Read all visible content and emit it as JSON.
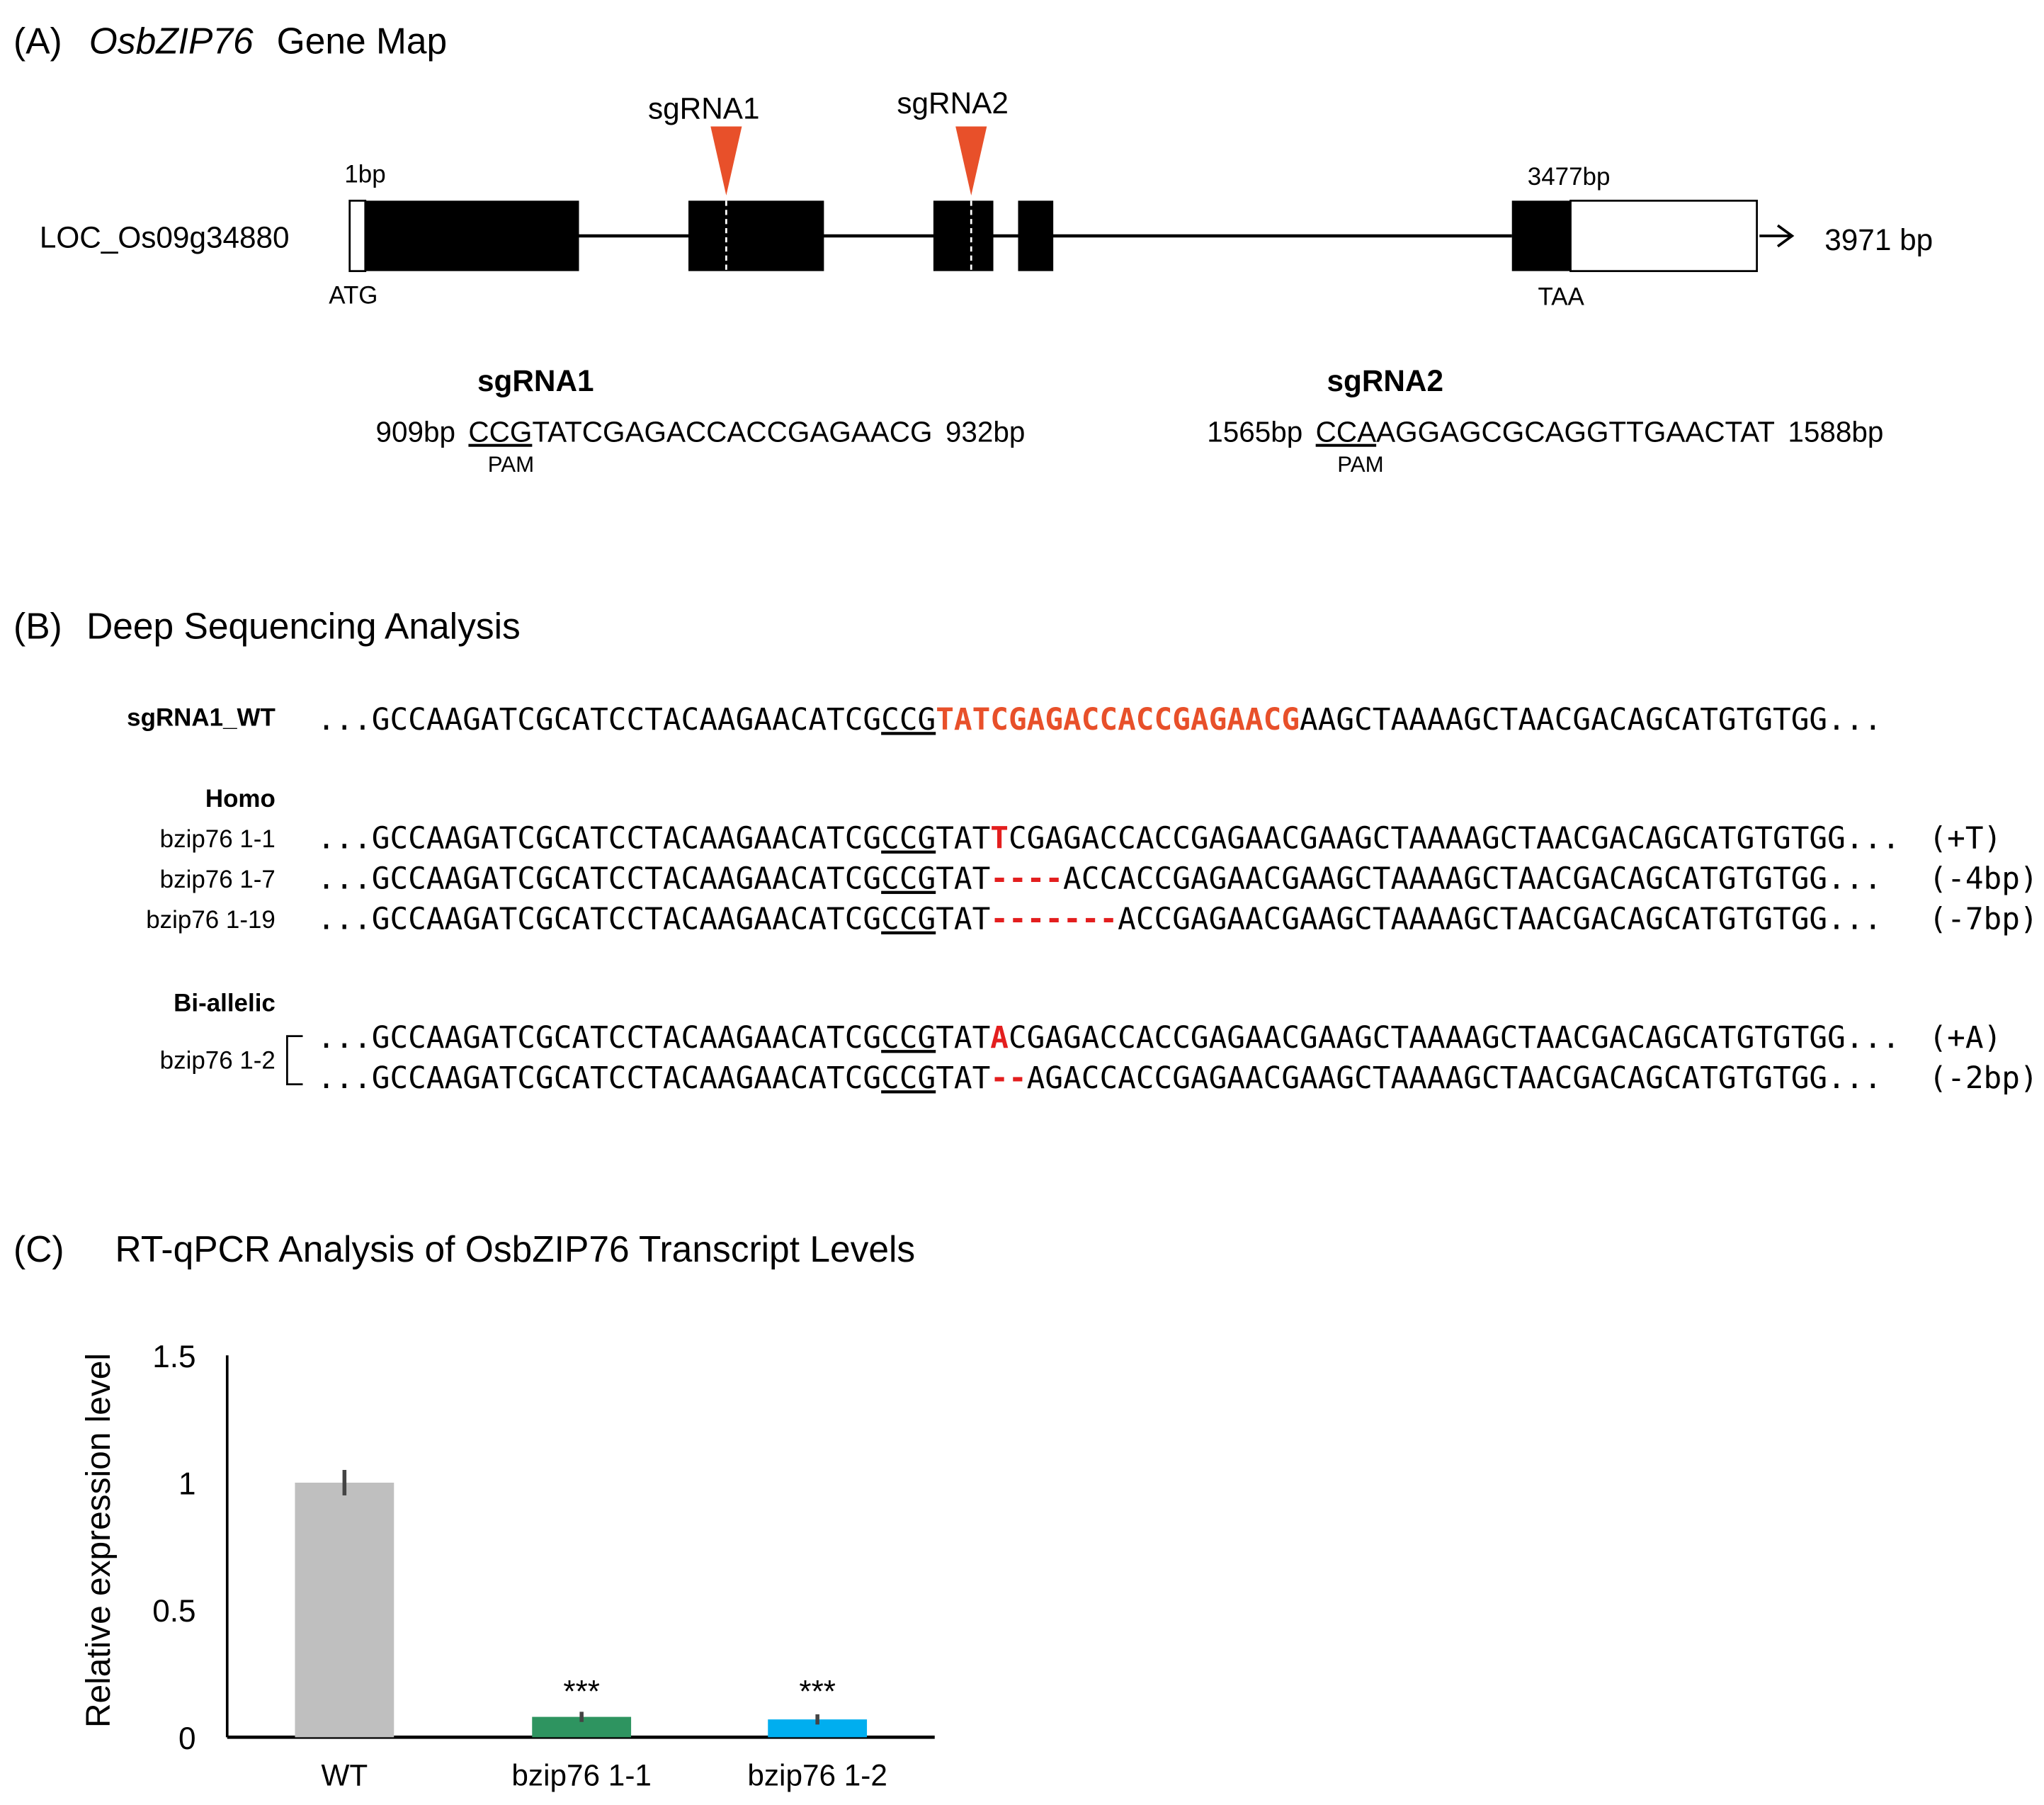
{
  "panel_a": {
    "label": "(A)",
    "title_italic": "OsbZIP76",
    "title_rest": "Gene Map",
    "gene_id": "LOC_Os09g34880",
    "start_label": "1bp",
    "start_codon": "ATG",
    "stop_pos_label": "3477bp",
    "stop_codon": "TAA",
    "length_label": "3971 bp",
    "marker1": "sgRNA1",
    "marker2": "sgRNA2",
    "marker_color": "#e8502a",
    "sg1": {
      "title": "sgRNA1",
      "start": "909bp",
      "pam": "CCG",
      "seq": "TATCGAGACCACCGAGAACG",
      "end": "932bp",
      "pam_label": "PAM"
    },
    "sg2": {
      "title": "sgRNA2",
      "start": "1565bp",
      "pam": "CCA",
      "seq": "AGGAGCGCAGGTTGAACTAT",
      "end": "1588bp",
      "pam_label": "PAM"
    }
  },
  "panel_b": {
    "label": "(B)",
    "title": "Deep Sequencing Analysis",
    "prefix": "...GCCAAGATCGCATCCTACAAGAACATCG",
    "pam": "CCG",
    "wt": {
      "label": "sgRNA1_WT",
      "target": "TATCGAGACCACCGAGAACG",
      "suffix": "AAGCTAAAAGCTAACGACAGCATGTGTGG..."
    },
    "homo_label": "Homo",
    "biallelic_label": "Bi-allelic",
    "rows": [
      {
        "label": "bzip76 1-1",
        "pre": "TAT",
        "mut": "T",
        "post": "CGAGACCACCGAGAACGAAGCTAAAAGCTAACGACAGCATGTGTGG...",
        "note": "(+T)"
      },
      {
        "label": "bzip76 1-7",
        "pre": "TAT",
        "mut": "----",
        "post": "ACCACCGAGAACGAAGCTAAAAGCTAACGACAGCATGTGTGG...",
        "note": "(-4bp)"
      },
      {
        "label": "bzip76 1-19",
        "pre": "TAT",
        "mut": "-------",
        "post": "ACCGAGAACGAAGCTAAAAGCTAACGACAGCATGTGTGG...",
        "note": "(-7bp)"
      },
      {
        "label": "bzip76 1-2",
        "pre": "TAT",
        "mut": "A",
        "post": "CGAGACCACCGAGAACGAAGCTAAAAGCTAACGACAGCATGTGTGG...",
        "note": "(+A)"
      },
      {
        "label": "",
        "pre": "TAT",
        "mut": "--",
        "post": "AGACCACCGAGAACGAAGCTAAAAGCTAACGACAGCATGTGTGG...",
        "note": "(-2bp)"
      }
    ],
    "target_color": "#e8502a",
    "mutation_color": "#e31e1e"
  },
  "panel_c": {
    "label": "(C)",
    "title": "RT-qPCR Analysis of OsbZIP76 Transcript Levels"
  },
  "chart_data": {
    "type": "bar",
    "title": "RT-qPCR Analysis of OsbZIP76 Transcript Levels",
    "xlabel": "",
    "ylabel": "Relative expression level",
    "ylim": [
      0,
      1.5
    ],
    "yticks": [
      "0",
      "0.5",
      "1",
      "1.5"
    ],
    "categories": [
      "WT",
      "bzip76 1-1",
      "bzip76 1-2"
    ],
    "values": [
      1.0,
      0.08,
      0.07
    ],
    "errors": [
      0.05,
      0.02,
      0.02
    ],
    "annotations": [
      "",
      "***",
      "***"
    ],
    "colors": [
      "#bfbfbf",
      "#2e9460",
      "#00aeef"
    ],
    "grid": false
  }
}
